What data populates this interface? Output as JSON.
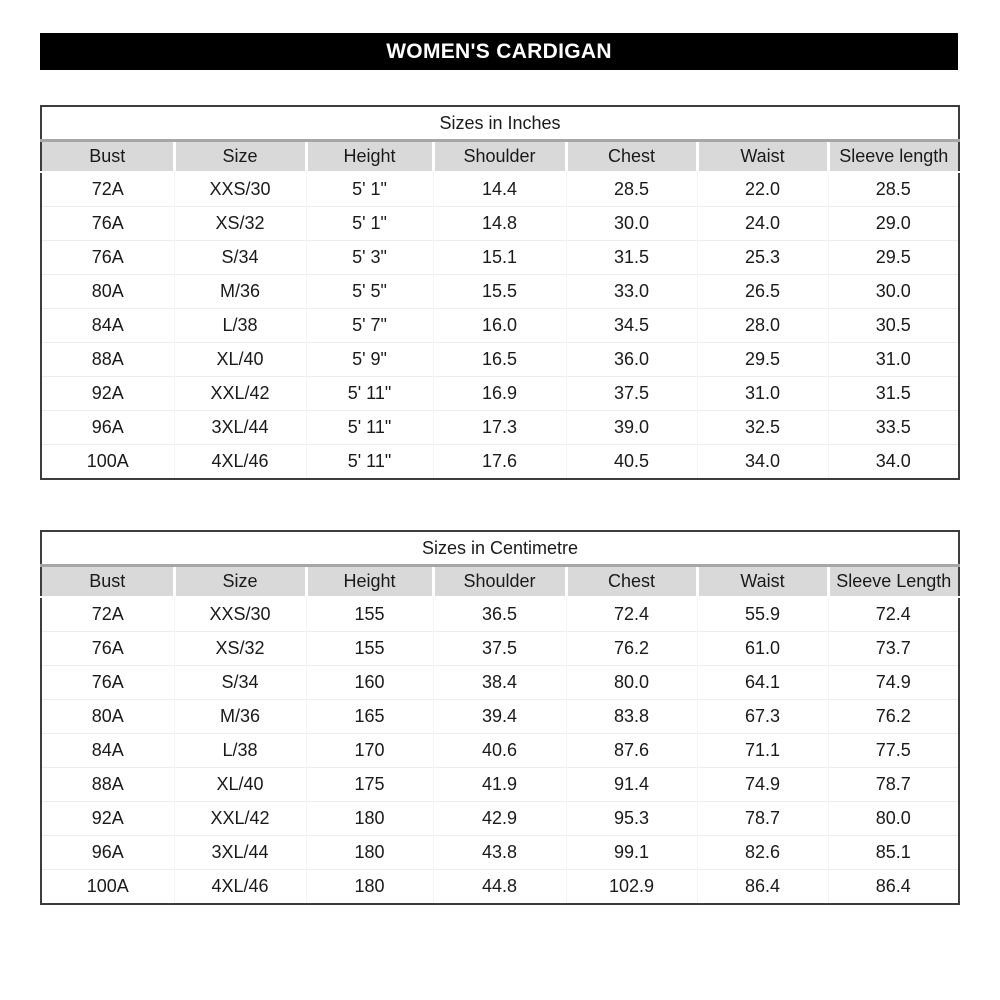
{
  "page": {
    "title": "WOMEN'S CARDIGAN"
  },
  "colors": {
    "title_bar_bg": "#000000",
    "title_bar_text": "#ffffff",
    "header_row_bg": "#d9d9d9",
    "table_border": "#3d3d3d",
    "body_text": "#1a1a1a"
  },
  "tables": [
    {
      "section_title": "Sizes in Inches",
      "columns": [
        "Bust",
        "Size",
        "Height",
        "Shoulder",
        "Chest",
        "Waist",
        "Sleeve length"
      ],
      "rows": [
        [
          "72A",
          "XXS/30",
          "5' 1\"",
          "14.4",
          "28.5",
          "22.0",
          "28.5"
        ],
        [
          "76A",
          "XS/32",
          "5' 1\"",
          "14.8",
          "30.0",
          "24.0",
          "29.0"
        ],
        [
          "76A",
          "S/34",
          "5' 3\"",
          "15.1",
          "31.5",
          "25.3",
          "29.5"
        ],
        [
          "80A",
          "M/36",
          "5' 5\"",
          "15.5",
          "33.0",
          "26.5",
          "30.0"
        ],
        [
          "84A",
          "L/38",
          "5' 7\"",
          "16.0",
          "34.5",
          "28.0",
          "30.5"
        ],
        [
          "88A",
          "XL/40",
          "5' 9\"",
          "16.5",
          "36.0",
          "29.5",
          "31.0"
        ],
        [
          "92A",
          "XXL/42",
          "5' 11\"",
          "16.9",
          "37.5",
          "31.0",
          "31.5"
        ],
        [
          "96A",
          "3XL/44",
          "5' 11\"",
          "17.3",
          "39.0",
          "32.5",
          "33.5"
        ],
        [
          "100A",
          "4XL/46",
          "5' 11\"",
          "17.6",
          "40.5",
          "34.0",
          "34.0"
        ]
      ]
    },
    {
      "section_title": "Sizes in Centimetre",
      "columns": [
        "Bust",
        "Size",
        "Height",
        "Shoulder",
        "Chest",
        "Waist",
        "Sleeve Length"
      ],
      "rows": [
        [
          "72A",
          "XXS/30",
          "155",
          "36.5",
          "72.4",
          "55.9",
          "72.4"
        ],
        [
          "76A",
          "XS/32",
          "155",
          "37.5",
          "76.2",
          "61.0",
          "73.7"
        ],
        [
          "76A",
          "S/34",
          "160",
          "38.4",
          "80.0",
          "64.1",
          "74.9"
        ],
        [
          "80A",
          "M/36",
          "165",
          "39.4",
          "83.8",
          "67.3",
          "76.2"
        ],
        [
          "84A",
          "L/38",
          "170",
          "40.6",
          "87.6",
          "71.1",
          "77.5"
        ],
        [
          "88A",
          "XL/40",
          "175",
          "41.9",
          "91.4",
          "74.9",
          "78.7"
        ],
        [
          "92A",
          "XXL/42",
          "180",
          "42.9",
          "95.3",
          "78.7",
          "80.0"
        ],
        [
          "96A",
          "3XL/44",
          "180",
          "43.8",
          "99.1",
          "82.6",
          "85.1"
        ],
        [
          "100A",
          "4XL/46",
          "180",
          "44.8",
          "102.9",
          "86.4",
          "86.4"
        ]
      ]
    }
  ]
}
